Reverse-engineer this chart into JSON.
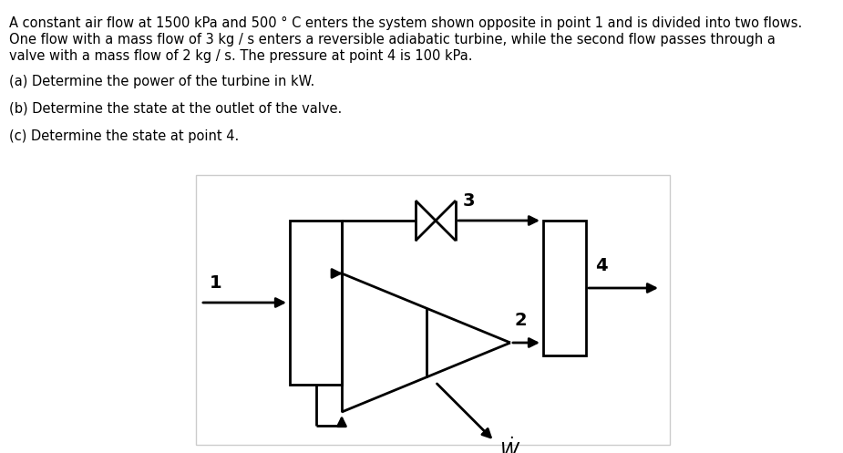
{
  "bg_color": "#ffffff",
  "text_color": "#000000",
  "line_color": "#000000",
  "text_lines": [
    "A constant air flow at 1500 kPa and 500 ° C enters the system shown opposite in point 1 and is divided into two flows.",
    "One flow with a mass flow of 3 kg / s enters a reversible adiabatic turbine, while the second flow passes through a",
    "valve with a mass flow of 2 kg / s. The pressure at point 4 is 100 kPa."
  ],
  "question_a": "(a) Determine the power of the turbine in kW.",
  "question_b": "(b) Determine the state at the outlet of the valve.",
  "question_c": "(c) Determine the state at point 4."
}
